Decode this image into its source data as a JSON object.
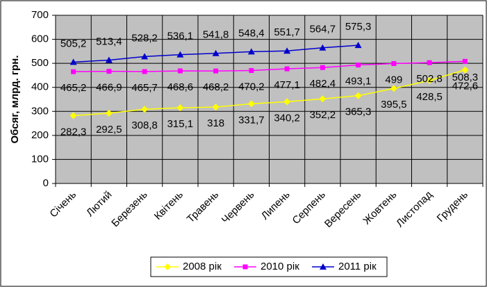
{
  "chart_data": {
    "type": "line",
    "y_label": "Обсяг, млрд. грн.",
    "categories": [
      "Січень",
      "Лютий",
      "Березень",
      "Квітень",
      "Травень",
      "Червень",
      "Липень",
      "Серпень",
      "Вересень",
      "Жовтень",
      "Листопад",
      "Грудень"
    ],
    "series": [
      {
        "name": "2008 рік",
        "color": "#ffff00",
        "marker": "diamond",
        "values": [
          282.3,
          292.5,
          308.8,
          315.1,
          318,
          331.7,
          340.2,
          352.2,
          365.3,
          395.5,
          428.5,
          472.6
        ],
        "value_labels": [
          "282,3",
          "292,5",
          "308,8",
          "315,1",
          "318",
          "331,7",
          "340,2",
          "352,2",
          "365,3",
          "395,5",
          "428,5",
          "472,6"
        ]
      },
      {
        "name": "2010 рік",
        "color": "#ff00ff",
        "marker": "square",
        "values": [
          465.2,
          466.9,
          465.7,
          468.6,
          468.2,
          470.2,
          477.1,
          482.4,
          493.1,
          499,
          502.8,
          508.3
        ],
        "value_labels": [
          "465,2",
          "466,9",
          "465,7",
          "468,6",
          "468,2",
          "470,2",
          "477,1",
          "482,4",
          "493,1",
          "499",
          "502,8",
          "508,3"
        ]
      },
      {
        "name": "2011 рік",
        "color": "#0000cc",
        "marker": "triangle",
        "values": [
          505.2,
          513.4,
          528.2,
          536.1,
          541.8,
          548.4,
          551.7,
          564.7,
          575.3,
          null,
          null,
          null
        ],
        "value_labels": [
          "505,2",
          "513,4",
          "528,2",
          "536,1",
          "541,8",
          "548,4",
          "551,7",
          "564,7",
          "575,3",
          null,
          null,
          null
        ]
      }
    ],
    "ylim": [
      0,
      700
    ],
    "yticks": [
      0,
      100,
      200,
      300,
      400,
      500,
      600,
      700
    ],
    "grid": true,
    "legend": "bottom"
  }
}
